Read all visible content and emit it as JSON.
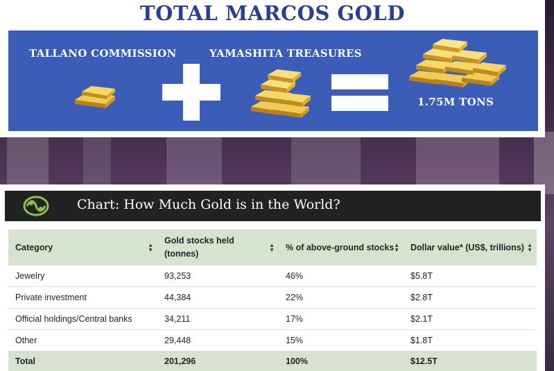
{
  "infographic": {
    "title": "TOTAL MARCOS GOLD",
    "left_label": "TALLANO COMMISSION",
    "middle_label": "YAMASHITA TREASURES",
    "result_label": "1.75M TONS",
    "colors": {
      "title": "#2a3f8f",
      "panel": "#3b5db8",
      "gold": "#e3b23c"
    }
  },
  "chart": {
    "title": "Chart: How Much Gold is in the World?",
    "logo_icon": "globe-leaf-icon",
    "columns": [
      {
        "label": "Category"
      },
      {
        "label": "Gold stocks held (tonnes)"
      },
      {
        "label": "% of above-ground stocks"
      },
      {
        "label": "Dollar value* (US$, trillions)"
      }
    ],
    "rows": [
      [
        "Jewelry",
        "93,253",
        "46%",
        "$5.8T"
      ],
      [
        "Private investment",
        "44,384",
        "22%",
        "$2.8T"
      ],
      [
        "Official holdings/Central banks",
        "34,211",
        "17%",
        "$2.1T"
      ],
      [
        "Other",
        "29,448",
        "15%",
        "$1.8T"
      ]
    ],
    "total_row": [
      "Total",
      "201,296",
      "100%",
      "$12.5T"
    ]
  }
}
